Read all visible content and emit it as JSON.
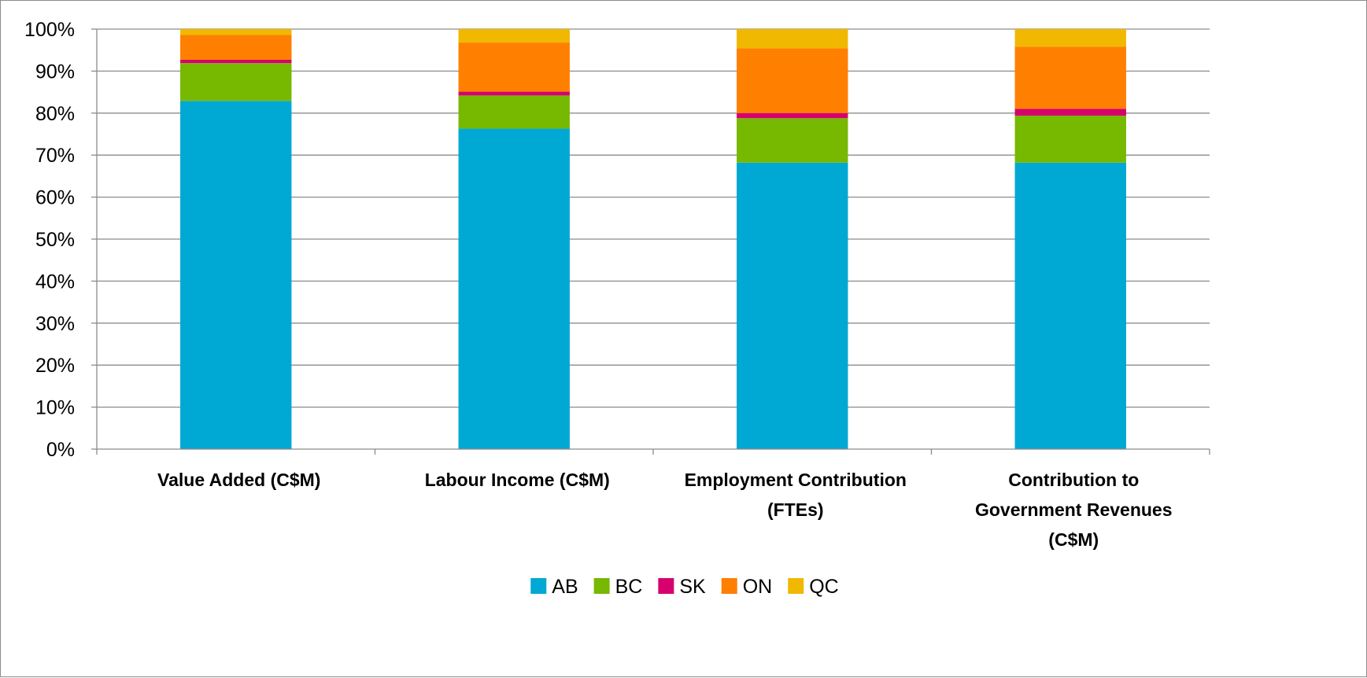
{
  "chart_data": {
    "type": "bar",
    "stacked": true,
    "percent_stacked": true,
    "categories": [
      [
        "Value Added (C$M)"
      ],
      [
        "Labour Income (C$M)"
      ],
      [
        "Employment Contribution",
        "(FTEs)"
      ],
      [
        "Contribution to",
        "Government Revenues",
        "(C$M)"
      ]
    ],
    "series": [
      {
        "name": "AB",
        "color": "#00a9d4",
        "values": [
          82.9,
          76.3,
          68.2,
          68.2
        ]
      },
      {
        "name": "BC",
        "color": "#77b800",
        "values": [
          9.0,
          7.9,
          10.6,
          11.2
        ]
      },
      {
        "name": "SK",
        "color": "#d6006e",
        "values": [
          0.8,
          0.9,
          1.2,
          1.6
        ]
      },
      {
        "name": "ON",
        "color": "#ff7f00",
        "values": [
          5.9,
          11.7,
          15.4,
          14.8
        ]
      },
      {
        "name": "QC",
        "color": "#f0b800",
        "values": [
          1.4,
          3.2,
          4.6,
          4.2
        ]
      }
    ],
    "yticks": [
      "0%",
      "10%",
      "20%",
      "30%",
      "40%",
      "50%",
      "60%",
      "70%",
      "80%",
      "90%",
      "100%"
    ],
    "ylim": [
      0,
      100
    ],
    "grid": true,
    "legend_position": "bottom"
  }
}
